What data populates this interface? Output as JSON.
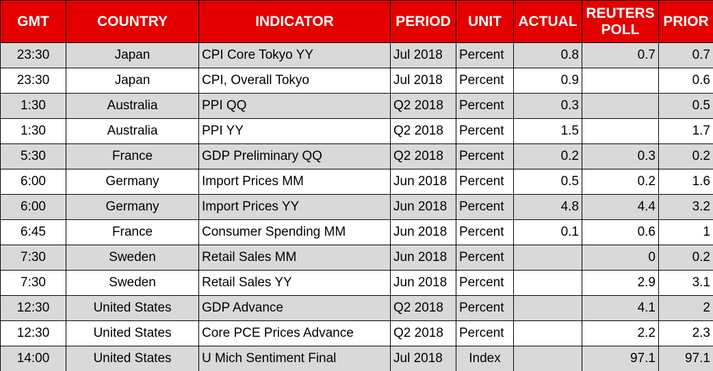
{
  "table": {
    "header": [
      "GMT",
      "COUNTRY",
      "INDICATOR",
      "PERIOD",
      "UNIT",
      "ACTUAL",
      "REUTERS POLL",
      "PRIOR"
    ],
    "rows": [
      [
        "23:30",
        "Japan",
        "CPI Core Tokyo YY",
        "Jul 2018",
        "Percent",
        "0.8",
        "0.7",
        "0.7"
      ],
      [
        "23:30",
        "Japan",
        "CPI, Overall Tokyo",
        "Jul 2018",
        "Percent",
        "0.9",
        null,
        "0.6"
      ],
      [
        "1:30",
        "Australia",
        "PPI QQ",
        "Q2 2018",
        "Percent",
        "0.3",
        null,
        "0.5"
      ],
      [
        "1:30",
        "Australia",
        "PPI YY",
        "Q2 2018",
        "Percent",
        "1.5",
        null,
        "1.7"
      ],
      [
        "5:30",
        "France",
        "GDP Preliminary QQ",
        "Q2 2018",
        "Percent",
        "0.2",
        "0.3",
        "0.2"
      ],
      [
        "6:00",
        "Germany",
        "Import Prices MM",
        "Jun 2018",
        "Percent",
        "0.5",
        "0.2",
        "1.6"
      ],
      [
        "6:00",
        "Germany",
        "Import Prices YY",
        "Jun 2018",
        "Percent",
        "4.8",
        "4.4",
        "3.2"
      ],
      [
        "6:45",
        "France",
        "Consumer Spending MM",
        "Jun 2018",
        "Percent",
        "0.1",
        "0.6",
        "1"
      ],
      [
        "7:30",
        "Sweden",
        "Retail Sales MM",
        "Jun 2018",
        "Percent",
        null,
        "0",
        "0.2"
      ],
      [
        "7:30",
        "Sweden",
        "Retail Sales YY",
        "Jun 2018",
        "Percent",
        null,
        "2.9",
        "3.1"
      ],
      [
        "12:30",
        "United States",
        "GDP Advance",
        "Q2 2018",
        "Percent",
        null,
        "4.1",
        "2"
      ],
      [
        "12:30",
        "United States",
        "Core PCE Prices Advance",
        "Q2 2018",
        "Percent",
        null,
        "2.2",
        "2.3"
      ],
      [
        "14:00",
        "United States",
        "U Mich Sentiment Final",
        "Jul 2018",
        "Index",
        null,
        "97.1",
        "97.1"
      ]
    ]
  }
}
